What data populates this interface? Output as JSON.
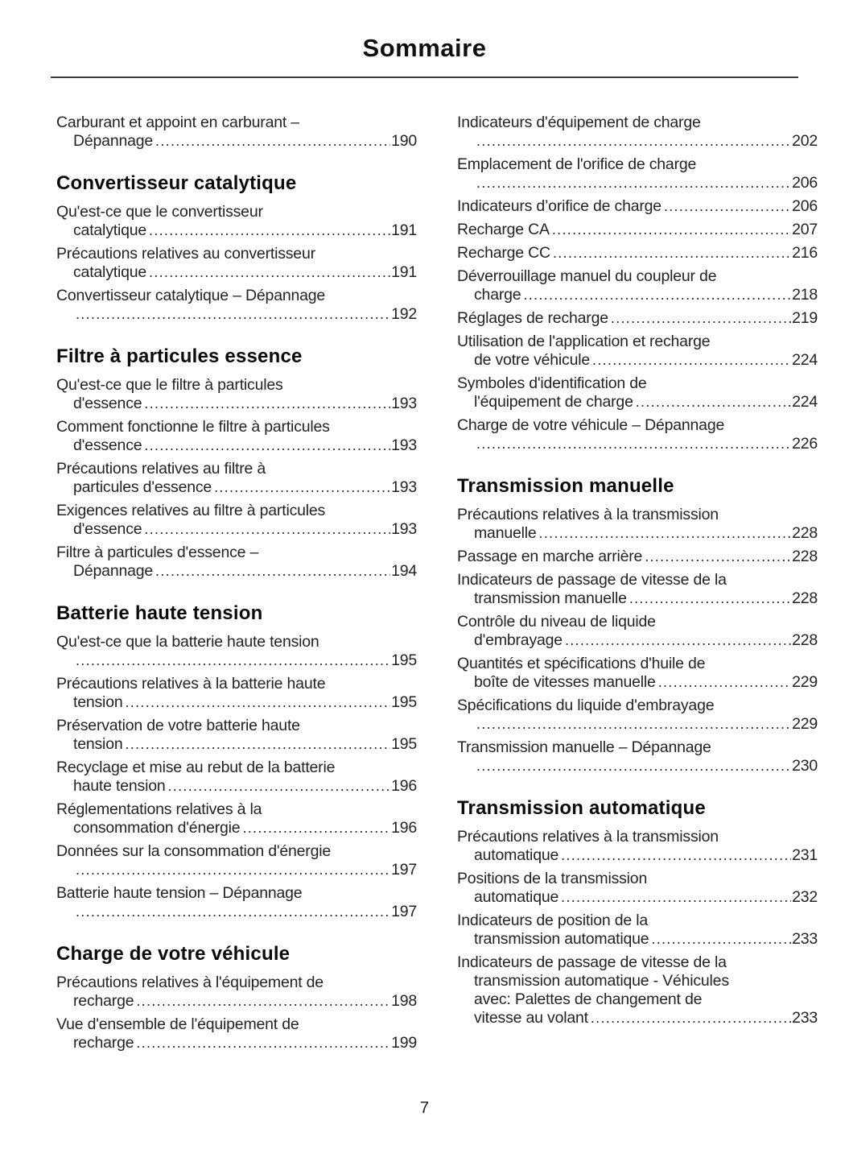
{
  "page": {
    "title": "Sommaire",
    "footer_page_number": "7"
  },
  "columns": {
    "left": [
      {
        "heading": "",
        "entries": [
          {
            "lines": [
              "Carburant et appoint en carburant –"
            ],
            "leader": "Dépannage",
            "page": "190"
          }
        ]
      },
      {
        "heading": "Convertisseur catalytique",
        "entries": [
          {
            "lines": [
              "Qu'est-ce que le convertisseur"
            ],
            "leader": "catalytique",
            "page": "191"
          },
          {
            "lines": [
              "Précautions relatives au convertisseur"
            ],
            "leader": "catalytique",
            "page": "191"
          },
          {
            "lines": [
              "Convertisseur catalytique – Dépannage"
            ],
            "leader": "",
            "page": "192"
          }
        ]
      },
      {
        "heading": "Filtre à particules essence",
        "entries": [
          {
            "lines": [
              "Qu'est-ce que le filtre à particules"
            ],
            "leader": "d'essence",
            "page": "193"
          },
          {
            "lines": [
              "Comment fonctionne le filtre à particules"
            ],
            "leader": "d'essence",
            "page": "193"
          },
          {
            "lines": [
              "Précautions relatives au filtre à"
            ],
            "leader": "particules d'essence",
            "page": "193"
          },
          {
            "lines": [
              "Exigences relatives au filtre à particules"
            ],
            "leader": "d'essence",
            "page": "193"
          },
          {
            "lines": [
              "Filtre à particules d'essence –"
            ],
            "leader": "Dépannage",
            "page": "194"
          }
        ]
      },
      {
        "heading": "Batterie haute tension",
        "entries": [
          {
            "lines": [
              "Qu'est-ce que la batterie haute tension"
            ],
            "leader": "",
            "page": "195"
          },
          {
            "lines": [
              "Précautions relatives à la batterie haute"
            ],
            "leader": "tension",
            "page": "195"
          },
          {
            "lines": [
              "Préservation de votre batterie haute"
            ],
            "leader": "tension",
            "page": "195"
          },
          {
            "lines": [
              "Recyclage et mise au rebut de la batterie"
            ],
            "leader": "haute tension",
            "page": "196"
          },
          {
            "lines": [
              "Réglementations relatives à la"
            ],
            "leader": "consommation d'énergie",
            "page": "196"
          },
          {
            "lines": [
              "Données sur la consommation d'énergie"
            ],
            "leader": "",
            "page": "197"
          },
          {
            "lines": [
              "Batterie haute tension – Dépannage"
            ],
            "leader": "",
            "page": "197"
          }
        ]
      },
      {
        "heading": "Charge de votre véhicule",
        "entries": [
          {
            "lines": [
              "Précautions relatives à l'équipement de"
            ],
            "leader": "recharge",
            "page": "198"
          },
          {
            "lines": [
              "Vue d'ensemble de l'équipement de"
            ],
            "leader": "recharge",
            "page": "199"
          }
        ]
      }
    ],
    "right": [
      {
        "heading": "",
        "entries": [
          {
            "lines": [
              "Indicateurs d'équipement de charge"
            ],
            "leader": "",
            "page": "202"
          },
          {
            "lines": [
              "Emplacement de l'orifice de charge"
            ],
            "leader": "",
            "page": "206"
          },
          {
            "lines": [],
            "leader": "Indicateurs d’orifice de charge",
            "page": "206"
          },
          {
            "lines": [],
            "leader": "Recharge CA",
            "page": "207"
          },
          {
            "lines": [],
            "leader": "Recharge CC",
            "page": "216"
          },
          {
            "lines": [
              "Déverrouillage manuel du coupleur de"
            ],
            "leader": "charge",
            "page": "218"
          },
          {
            "lines": [],
            "leader": "Réglages de recharge",
            "page": "219"
          },
          {
            "lines": [
              "Utilisation de l'application et recharge"
            ],
            "leader": "de votre véhicule",
            "page": "224"
          },
          {
            "lines": [
              "Symboles d'identification de"
            ],
            "leader": "l'équipement de charge",
            "page": "224"
          },
          {
            "lines": [
              "Charge de votre véhicule – Dépannage"
            ],
            "leader": "",
            "page": "226"
          }
        ]
      },
      {
        "heading": "Transmission manuelle",
        "entries": [
          {
            "lines": [
              "Précautions relatives à la transmission"
            ],
            "leader": "manuelle",
            "page": "228"
          },
          {
            "lines": [],
            "leader": "Passage en marche arrière",
            "page": "228"
          },
          {
            "lines": [
              "Indicateurs de passage de vitesse de la"
            ],
            "leader": "transmission manuelle",
            "page": "228"
          },
          {
            "lines": [
              "Contrôle du niveau de liquide"
            ],
            "leader": "d'embrayage",
            "page": "228"
          },
          {
            "lines": [
              "Quantités et spécifications d'huile de"
            ],
            "leader": "boîte de vitesses manuelle",
            "page": "229"
          },
          {
            "lines": [
              "Spécifications du liquide d'embrayage"
            ],
            "leader": "",
            "page": "229"
          },
          {
            "lines": [
              "Transmission manuelle – Dépannage"
            ],
            "leader": "",
            "page": "230"
          }
        ]
      },
      {
        "heading": "Transmission automatique",
        "entries": [
          {
            "lines": [
              "Précautions relatives à la transmission"
            ],
            "leader": "automatique",
            "page": "231"
          },
          {
            "lines": [
              "Positions de la transmission"
            ],
            "leader": "automatique",
            "page": "232"
          },
          {
            "lines": [
              "Indicateurs de position de la"
            ],
            "leader": "transmission automatique",
            "page": "233"
          },
          {
            "lines": [
              "Indicateurs de passage de vitesse de la",
              "transmission automatique - Véhicules",
              "avec: Palettes de changement de"
            ],
            "leader": "vitesse au volant",
            "page": "233"
          }
        ]
      }
    ]
  }
}
